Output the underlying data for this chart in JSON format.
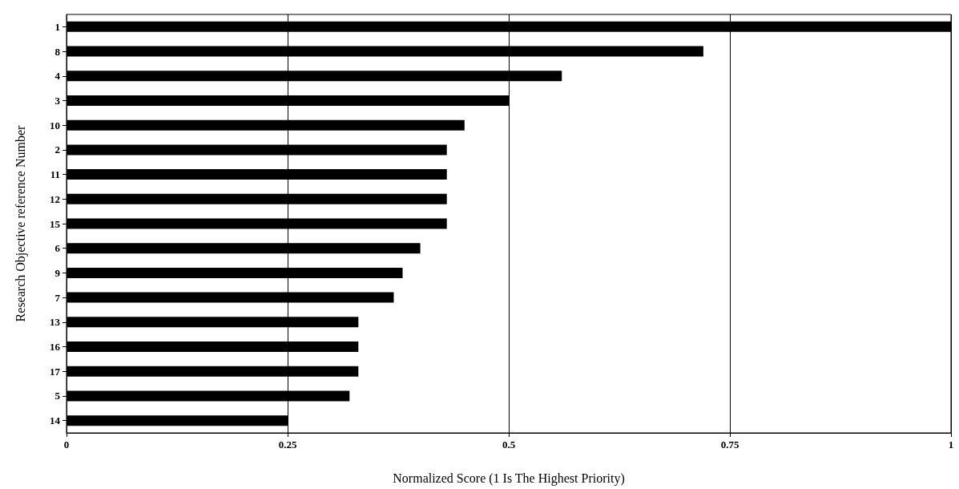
{
  "chart_data": {
    "type": "bar",
    "orientation": "horizontal",
    "xlabel": "Normalized Score (1 Is The Highest Priority)",
    "ylabel": "Research Objective reference Number",
    "categories": [
      "1",
      "8",
      "4",
      "3",
      "10",
      "2",
      "11",
      "12",
      "15",
      "6",
      "9",
      "7",
      "13",
      "16",
      "17",
      "5",
      "14"
    ],
    "values": [
      1.0,
      0.72,
      0.56,
      0.5,
      0.45,
      0.43,
      0.43,
      0.43,
      0.43,
      0.4,
      0.38,
      0.37,
      0.33,
      0.33,
      0.33,
      0.32,
      0.25
    ],
    "color": "#000000",
    "xlim": [
      0,
      1
    ],
    "xticks": [
      0,
      0.25,
      0.5,
      0.75,
      1
    ],
    "grid": "x"
  }
}
